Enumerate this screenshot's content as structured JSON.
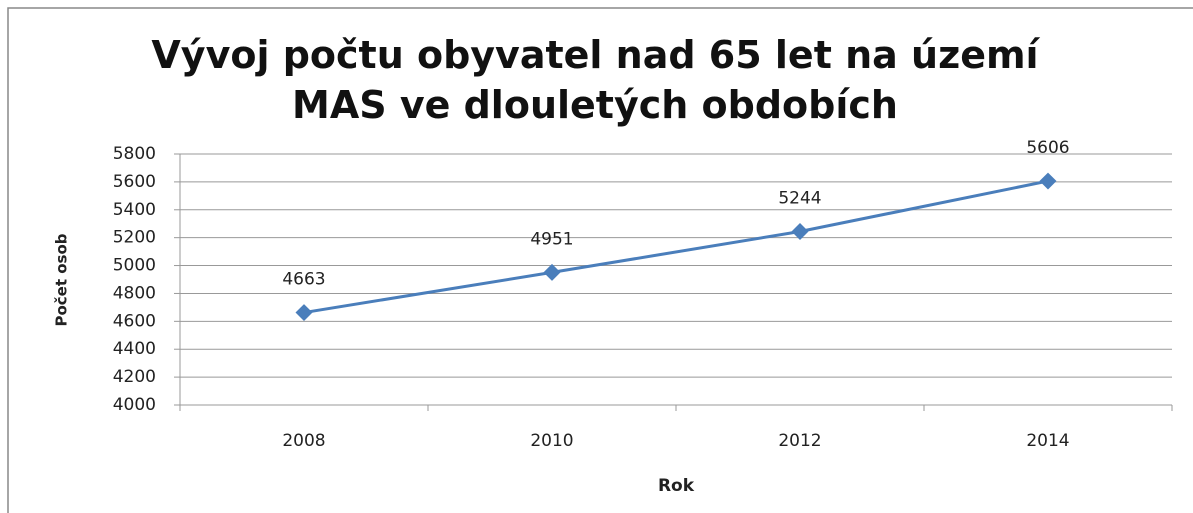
{
  "chart_data": {
    "type": "line",
    "title": "Vývoj počtu obyvatel nad 65 let na území MAS ve dlouletých obdobích",
    "x_label": "Rok",
    "y_label": "Počet osob",
    "categories": [
      "2008",
      "2010",
      "2012",
      "2014"
    ],
    "series": [
      {
        "name": "Počet osob",
        "color": "#4a7ebb",
        "values": [
          4663,
          4951,
          5244,
          5606
        ]
      }
    ],
    "ylim": [
      4000,
      5800
    ],
    "yticks": [
      4000,
      4200,
      4400,
      4600,
      4800,
      5000,
      5200,
      5400,
      5600,
      5800
    ],
    "grid": true,
    "data_labels": true
  }
}
